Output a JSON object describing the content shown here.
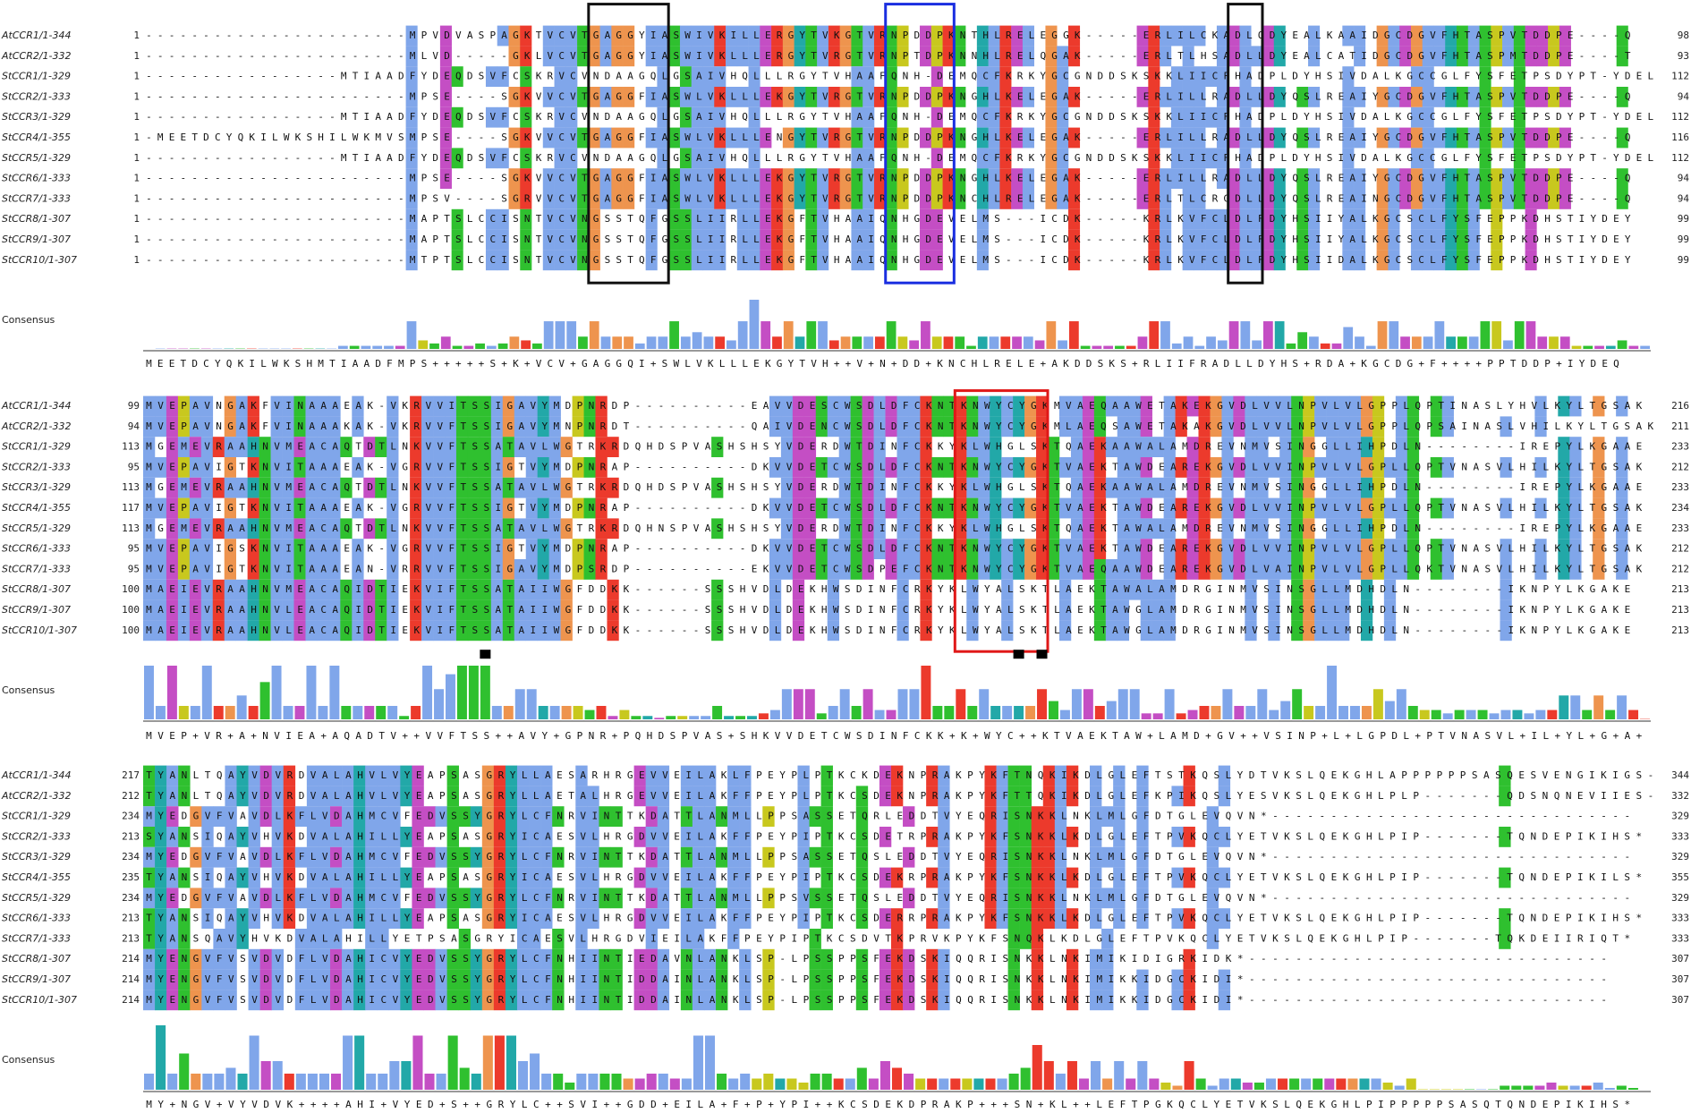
{
  "blocks": [
    {
      "rows": [
        {
          "name": "AtCCR1/1-344",
          "start": 1,
          "sequence": "-----------------------MPVDVASPAGKTVCVTGAGGYIASWIVKILLERGYTVKGTVRNPDDPKNTHLRELEGGK-----ERLILCKADLQDYEALKAAIDGCDGVFHTASPVTDDPE----Q",
          "end": 98
        },
        {
          "name": "AtCCR2/1-332",
          "start": 1,
          "sequence": "-----------------------MLVD-----GKLVCVTGAGGYIASWIVKLLLERGYTVRGTVRNPTDPKNNHLRELQGAK-----ERLTLHSADLLDYEALCATIDGCDGVFHTASPMTDDPE----T",
          "end": 93
        },
        {
          "name": "StCCR1/1-329",
          "start": 1,
          "sequence": "-----------------MTIAADFYDEQDSVFCSKRVCVNDAAGQLGSAIVHQLLLRGYTVHAAFQNH-DEMQCFKRKYGCGNDDSKSKKLIICFHADPLDYHSIVDALKGCCGLFYSFETPSDYPT-YDEL",
          "end": 112
        },
        {
          "name": "StCCR2/1-333",
          "start": 1,
          "sequence": "-----------------------MPSE----SGKVVCVTGAGGFIASWLVKLLLEKGYTVRGTVRNPDDPKNGHLKELEGAK-----ERLILLRADLLDYQSLREAIYGCDGVFHTASPVTDDPE----Q",
          "end": 94
        },
        {
          "name": "StCCR3/1-329",
          "start": 1,
          "sequence": "-----------------MTIAADFYDEQDSVFCSKRVCVNDAAGQLGSAIVHQLLLRGYTVHAAFQNH-DEMQCFKRKYGCGNDDSKSKKLIICFHADPLDYHSIVDALKGCCGLFYSFETPSDYPT-YDEL",
          "end": 112
        },
        {
          "name": "StCCR4/1-355",
          "start": 1,
          "sequence": "-MEETDCYQKILWKSHILWKMVSMPSE----SGKVVCVTGAGGFIASWLVKLLLENGYTVRGTVRNPDDPKNGHLKELEGAK-----ERLILLRADLLDYQSLREAIYGCDGVFHTASPVTDDPE----Q",
          "end": 116
        },
        {
          "name": "StCCR5/1-329",
          "start": 1,
          "sequence": "-----------------MTIAADFYDEQDSVFCSKRVCVNDAAGQLGSAIVHQLLLRGYTVHAAFQNH-DEMQCFKRKYGCGNDDSKSKKLIICFHADPLDYHSIVDALKGCCGLFYSFETPSDYPT-YDEL",
          "end": 112
        },
        {
          "name": "StCCR6/1-333",
          "start": 1,
          "sequence": "-----------------------MPSE----SGKVVCVTGAGGFIASWLVKLLLEKGYTVRGTVRNPDDPKNGHLKELEGAK-----ERLILLRADLLDYQSLREAIYGCDGVFHTASPVTDDPE----Q",
          "end": 94
        },
        {
          "name": "StCCR7/1-333",
          "start": 1,
          "sequence": "-----------------------MPSV----SGRVVCVTGAGGFIASWLVKLLLEKGYTVRGTVRNPDDPKNCHLRELEGAK-----ERLTLCRGDLLDYQSLREAINGCDGVFHTASPVTDDPE----Q",
          "end": 94
        },
        {
          "name": "StCCR8/1-307",
          "start": 1,
          "sequence": "-----------------------MAPTSLCCISNTVCVNGSSTQFGSSLIIRLLEKGFTVHAAIQNHGDEVELMS---ICDK-----KRLKVFCLDLFDYHSIIYALKGCSCLFYSFEPPKDHSTIYDEY",
          "end": 99
        },
        {
          "name": "StCCR9/1-307",
          "start": 1,
          "sequence": "-----------------------MAPTSLCCISNTVCVNGSSTQFGSSLIIRLLEKGFTVHAAIQNHGDEVELMS---ICDK-----KRLKVFCLDLFDYHSIIYALKGCSCLFYSFEPPKDHSTIYDEY",
          "end": 99
        },
        {
          "name": "StCCR10/1-307",
          "start": 1,
          "sequence": "-----------------------MTPTSLCCISNTVCVNGSSTQFGSSLIIRLLEKGFTVHAAIQNHGDEVELMS---ICDK-----KRLKVFCLDLFDYHSIIDALKGCSCLFYSFEPPKDHSTIYDEY",
          "end": 99
        }
      ],
      "consensus_label": "Consensus",
      "consensus": "MEETDCYQKILWKSHMTIAADFMPS+++++S+K+VCV+GAGGQI+SWLVKLLLEKGYTVH++V+N+DD+KNCHLRELE+AKDDSKS+RLIIFRADLLDYHS+RDA+KGCDG+F++++PPTDDP+IYDEQ"
    },
    {
      "rows": [
        {
          "name": "AtCCR1/1-344",
          "start": 99,
          "sequence": "MVEPAVNGAKFVINAAAEAK-VKRVVITSSIGAVYMDPNRDP----------EAVVDESCWSDLDFCKNTKNWYCYGKMVAEQAAWETAKEKGVDLVVLNPVLVLGPPLQPTINASLYHVLKYLTGSAK",
          "end": 216
        },
        {
          "name": "AtCCR2/1-332",
          "start": 94,
          "sequence": "MVEPAVNGAKFVINAAAKAK-VKRVVFTSSIGAVYMNPNRDT----------QAIVDENCWSDLDFCKNTKNWYCYGKMLAEQSAWETAKAKGVDLVVLNPVLVLGPPLQPSAINASLVHILKYLTGSAK",
          "end": 211
        },
        {
          "name": "StCCR1/1-329",
          "start": 113,
          "sequence": "MGEMEVRAAHNVMEACAQTDTLNKVVFTSSATAVLWGTRKRDQHDSPVASHSHSYVDERDWTDINFCKKYKLWHGLSKTQAEKAAWALAMDREVNMVSINGGLLIHPDLN--------IREPYLKGAAE",
          "end": 233
        },
        {
          "name": "StCCR2/1-333",
          "start": 95,
          "sequence": "MVEPAVIGTKNVITAAAEAK-VGRVVFTSSIGTVYMDPNRAP----------DKVVDETCWSDLDFCKNTKNWYCYGKTVAEKTAWDEAREKGVDLVVINPVLVLGPLLQPTVNASVLHILKYLTGSAK",
          "end": 212
        },
        {
          "name": "StCCR3/1-329",
          "start": 113,
          "sequence": "MGEMEVRAAHNVMEACAQTDTLNKVVFTSSATAVLWGTRKRDQHDSPVASHSHSYVDERDWTDINFCKKYKLWHGLSKTQAEKAAWALAMDREVNMVSINGGLLIHPDLN--------IREPYLKGAAE",
          "end": 233
        },
        {
          "name": "StCCR4/1-355",
          "start": 117,
          "sequence": "MVEPAVIGTKNVITAAAEAK-VGRVVFTSSIGTVYMDPNRAP----------DKVVDETCWSDLDFCKNTKNWYCYGKTVAEKTAWDEAREKGVDLVVINPVLVLGPLLQPTVNASVLHILKYLTGSAK",
          "end": 234
        },
        {
          "name": "StCCR5/1-329",
          "start": 113,
          "sequence": "MGEMEVRAAHNVMEACAQTDTLNKVVFTSSATAVLWGTRKRDQHNSPVASHSHSYVDERDWTDINFCKKYKLWHGLSKTQAEKTAWALAMDREVNMVSINGGLLIHPDLN--------IREPYLKGAAE",
          "end": 233
        },
        {
          "name": "StCCR6/1-333",
          "start": 95,
          "sequence": "MVEPAVIGSKNVITAAAEAK-VGRVVFTSSIGTVYMDPNRAP----------DKVVDETCWSDLDFCKNTKNWYCYGKTVAEKTAWDEAREKGVDLVVINPVLVLGPLLQPTVNASVLHILKYLTGSAK",
          "end": 212
        },
        {
          "name": "StCCR7/1-333",
          "start": 95,
          "sequence": "MVEPAVIGTKNVITAAAEAN-VRRVVFTSSIGAVYMDPSRDP----------EKVVDETCWSDPEFCKNTKNWYCYGKTVAEQAAWDEAREKGVDLVAINPVLVLGPLLQKTVNASVLHILKYLTGSAK",
          "end": 212
        },
        {
          "name": "StCCR8/1-307",
          "start": 100,
          "sequence": "MAEIEVRAAHNVMEACAQIDTIEKVIFTSSATAIIWGFDDKK------SSSHVDLDEKHWSDINFCRKYKLWYALSKTLAEKTAWALAMDRGINMVSINSGLLMDHDLN--------IKNPYLKGAKE",
          "end": 213
        },
        {
          "name": "StCCR9/1-307",
          "start": 100,
          "sequence": "MAEIEVRAAHNVLEACAQIDTIEKVIFTSSATAIIWGFDDKK------SSSHVDLDEKHWSDINFCRKYKLWYALSKTLAEKTAWGLAMDRGINMVSINSGLLMDHDLN--------IKNPYLKGAKE",
          "end": 213
        },
        {
          "name": "StCCR10/1-307",
          "start": 100,
          "sequence": "MAEIEVRAAHNVLEACAQIDTIEKVIFTSSATAIIWGFDDKK------SSSHVDLDEKHWSDINFCRKYKLWYALSKTLAEKTAWGLAMDRGINMVSINSGLLMDHDLN--------IKNPYLKGAKE",
          "end": 213
        }
      ],
      "consensus_label": "Consensus",
      "consensus": "MVEP+VR+A+NVIEA+AQADTV++VVFTSS++AVY+GPNR+PQHDSPVAS+SHKVVDETCWSDINFCKK+K+WYC++KTVAEKTAW+LAMD+GV++VSINP+L+LGPDL+PTVNASVL+IL+YL+G+A+"
    },
    {
      "rows": [
        {
          "name": "AtCCR1/1-344",
          "start": 217,
          "sequence": "TYANLTQAYVDVRDVALAHVLVYEAPSASGRYLLAESARHRGEVVEILAKLFPEYPLPTKCKDEKNPRAKPYKFTNQKIKDLGLEFTSTKQSLYDTVKSLQEKGHLAPPPPPPSASQESVENGIKIGS-",
          "end": 344
        },
        {
          "name": "AtCCR2/1-332",
          "start": 212,
          "sequence": "TYANLTQAYVDVRDVALAHVLVYEAPSASGRYLLAETALHRGEVVEILAKFFPEYPLPTKCSDEKNPRAKPYKFTTQKIKDLGLEFKPIKQSLYESVKSLQEKGHLPLP-------QDSNQNEVIIES-",
          "end": 332
        },
        {
          "name": "StCCR1/1-329",
          "start": 234,
          "sequence": "MYEDGVFVAVDLKFLVDAHMCVFEDVSSYGRYLCFNRVINTTKDATTLANMLLPPSASSETQRLEDDTVYEQRISNKKLNKLMLGFDTGLEVQVN*-------------------------------",
          "end": 329
        },
        {
          "name": "StCCR2/1-333",
          "start": 213,
          "sequence": "SYANSIQAYVHVKDVALAHILLYEAPSASGRYICAESVLHRGDVVEILAKFFPEYPIPTKCSDETRPRAKPYKFSNKKLKDLGLEFTPVKQCLYETVKSLQEKGHLPIP-------TQNDEPIKIHS*",
          "end": 333
        },
        {
          "name": "StCCR3/1-329",
          "start": 234,
          "sequence": "MYEDGVFVAVDLKFLVDAHMCVFEDVSSYGRYLCFNRVINTTKDATTLANMLLPPSASSETQSLEDDTVYEQRISNKKLNKLMLGFDTGLEVQVN*-------------------------------",
          "end": 329
        },
        {
          "name": "StCCR4/1-355",
          "start": 235,
          "sequence": "TYANSIQAYVHVKDVALAHILLYEAPSASGRYICAESVLHRGDVVEILAKFFPEYPIPTKCSDEKRPRAKPYKFSNKKLKDLGLEFTPVKQCLYETVKSLQEKGHLPIP-------TQNDEPIKILS*",
          "end": 355
        },
        {
          "name": "StCCR5/1-329",
          "start": 234,
          "sequence": "MYEDGVFVAVDLKFLVDAHMCVFEDVSSYGRYLCFNRVINTTKDATTLANMLLPPSVSSETQSLEDDTVYEQRISNKKLNKLMLGFDTGLEVQVN*-------------------------------",
          "end": 329
        },
        {
          "name": "StCCR6/1-333",
          "start": 213,
          "sequence": "TYANSIQAYVHVKDVALAHILLYEAPSASGRYICAESVLHRGDVVEILAKFFPEYPIPTKCSDERRPRAKPYKFSNKKLKDLGLEFTPVKQCLYETVKSLQEKGHLPIP-------TQNDEPIKIHS*",
          "end": 333
        },
        {
          "name": "StCCR7/1-333",
          "start": 213,
          "sequence": "TYANSQAVYHVKDVALAHILLYETPSASGRYICAESVLHRGDVIEILAKFFPEYPIPTKCSDVTKPRVKPYKFSNQKLKDLGLEFTPVKQCLYETVKSLQEKGHLPIP-------TQKDEIIRIQT*",
          "end": 333
        },
        {
          "name": "StCCR8/1-307",
          "start": 214,
          "sequence": "MYENGVFVSVDVDFLVDAHICVYEDVSSYGRYLCFNHIINTIEDAVNLANKLSP-LPSSPPSFEKDSKIQQRISNKKLNKIMIKIDIGRKIDK*-------------------------------",
          "end": 307
        },
        {
          "name": "StCCR9/1-307",
          "start": 214,
          "sequence": "MYENGVFVSVDVDFLVDAHICVYEDVSSYGRYLCFNHIINTIDDAINLANKLSP-LPSSPPSFEKDSKIQQRISNKKLNKIMIKKIDGCKIDI*-------------------------------",
          "end": 307
        },
        {
          "name": "StCCR10/1-307",
          "start": 214,
          "sequence": "MYENGVFVSVDVDFLVDAHICVYEDVSSYGRYLCFNHIINTIDDAINLANKLSP-LPSSPPSFEKDSKIQQRISNKKLNKIMIKKIDGCKIDI*-------------------------------",
          "end": 307
        }
      ],
      "consensus_label": "Consensus",
      "consensus": "MY+NGV+VYVDVK++++AHI+VYED+S++GRYLC++SVI++GDD+EILA+F+P+YPI++KCSDEKDPRAKP+++SN+KL++LEFTPGKQCLYETVKSLQEKGHLPIPPPPPSASQTQNDEPIKIHS*"
    }
  ]
}
